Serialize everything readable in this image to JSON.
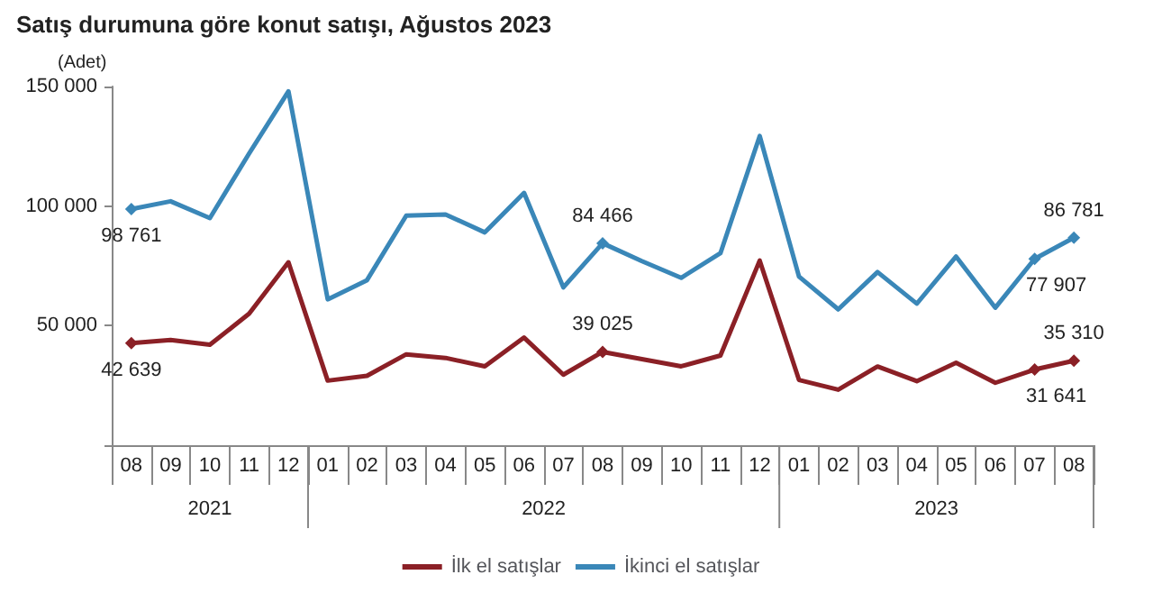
{
  "chart_data": {
    "type": "line",
    "title": "Satış durumuna göre konut satışı, Ağustos 2023",
    "ylabel": "(Adet)",
    "categories": [
      "08",
      "09",
      "10",
      "11",
      "12",
      "01",
      "02",
      "03",
      "04",
      "05",
      "06",
      "07",
      "08",
      "09",
      "10",
      "11",
      "12",
      "01",
      "02",
      "03",
      "04",
      "05",
      "06",
      "07",
      "08"
    ],
    "annotations": [
      "2021",
      "2022",
      "2023"
    ],
    "series": [
      {
        "name": "İlk el satışlar",
        "color": "#8b2026",
        "values": [
          42639,
          44000,
          42000,
          55000,
          76500,
          27000,
          29000,
          38000,
          36500,
          33000,
          45000,
          29500,
          39025,
          36000,
          33000,
          37500,
          77200,
          27300,
          23200,
          32900,
          26800,
          34500,
          26100,
          31641,
          35310
        ],
        "value_labels": [
          "42 639",
          null,
          null,
          null,
          null,
          null,
          null,
          null,
          null,
          null,
          null,
          null,
          "39 025",
          null,
          null,
          null,
          null,
          null,
          null,
          null,
          null,
          null,
          null,
          "31 641",
          "35 310"
        ]
      },
      {
        "name": "İkinci el satışlar",
        "color": "#3a87b8",
        "values": [
          98761,
          102000,
          95000,
          122000,
          148000,
          61000,
          69000,
          96000,
          96500,
          89000,
          105500,
          66000,
          84466,
          77000,
          70000,
          80300,
          129300,
          70500,
          56800,
          72400,
          59200,
          78900,
          57500,
          77907,
          86781
        ],
        "value_labels": [
          "98 761",
          null,
          null,
          null,
          null,
          null,
          null,
          null,
          null,
          null,
          null,
          null,
          "84 466",
          null,
          null,
          null,
          null,
          null,
          null,
          null,
          null,
          null,
          null,
          "77 907",
          "86 781"
        ]
      }
    ],
    "ylim": [
      0,
      150000
    ],
    "yticks": [
      {
        "value": 0,
        "label": null
      },
      {
        "value": 50000,
        "label": "50 000"
      },
      {
        "value": 100000,
        "label": "100 000"
      },
      {
        "value": 150000,
        "label": "150 000"
      }
    ],
    "grid": false,
    "legend": "bottom",
    "line_style": "solid"
  }
}
